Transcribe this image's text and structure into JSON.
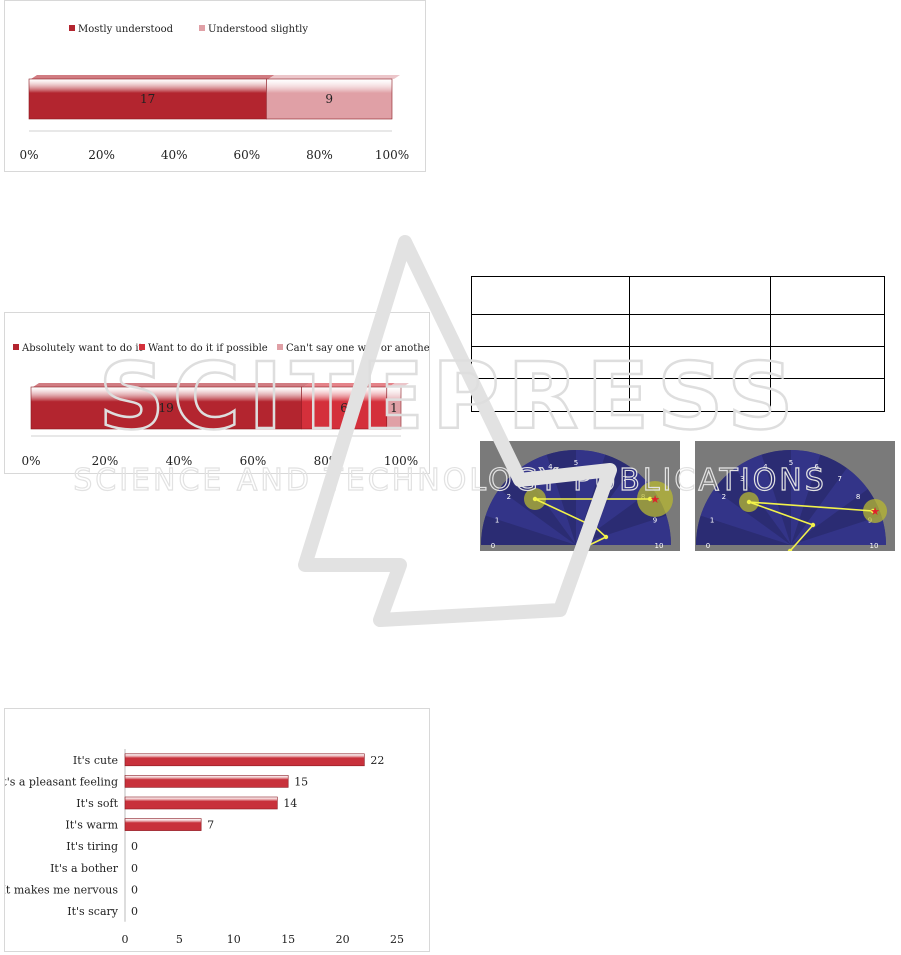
{
  "chart_data": [
    {
      "type": "stacked-bar-horizontal",
      "categories": [
        ""
      ],
      "series": [
        {
          "name": "Mostly understood",
          "values": [
            17
          ],
          "color": "#b3252f"
        },
        {
          "name": "Understood slightly",
          "values": [
            9
          ],
          "color": "#e0a0a6"
        }
      ],
      "xticks": [
        "0%",
        "20%",
        "40%",
        "60%",
        "80%",
        "100%"
      ],
      "xlim": [
        0,
        100
      ],
      "legend": "top"
    },
    {
      "type": "stacked-bar-horizontal",
      "categories": [
        ""
      ],
      "series": [
        {
          "name": "Absolutely want to do it",
          "values": [
            19
          ],
          "color": "#b3252f"
        },
        {
          "name": "Want to do it if possible",
          "values": [
            6
          ],
          "color": "#d4303b"
        },
        {
          "name": "Can't say one way or another",
          "values": [
            1
          ],
          "color": "#e0a0a6"
        }
      ],
      "xticks": [
        "0%",
        "20%",
        "40%",
        "60%",
        "80%",
        "100%"
      ],
      "xlim": [
        0,
        100
      ],
      "legend": "top"
    },
    {
      "type": "bar",
      "orientation": "horizontal",
      "categories": [
        "It's cute",
        "It's a pleasant feeling",
        "It's soft",
        "It's warm",
        "It's tiring",
        "It's a bother",
        "It makes me nervous",
        "It's scary"
      ],
      "values": [
        22,
        15,
        14,
        7,
        0,
        0,
        0,
        0
      ],
      "xticks": [
        "0",
        "5",
        "10",
        "15",
        "20",
        "25"
      ],
      "xlim": [
        0,
        25
      ],
      "color": "#c8313b"
    }
  ],
  "dials": [
    {
      "tick_labels": [
        "0",
        "1",
        "2",
        "3",
        "4",
        "5",
        "6",
        "7",
        "8",
        "9",
        "10"
      ]
    },
    {
      "tick_labels": [
        "0",
        "1",
        "2",
        "3",
        "4",
        "5",
        "6",
        "7",
        "8",
        "9",
        "10"
      ]
    }
  ],
  "watermark": {
    "logo": "SCITEPRESS",
    "tagline": "SCIENCE AND TECHNOLOGY PUBLICATIONS"
  }
}
